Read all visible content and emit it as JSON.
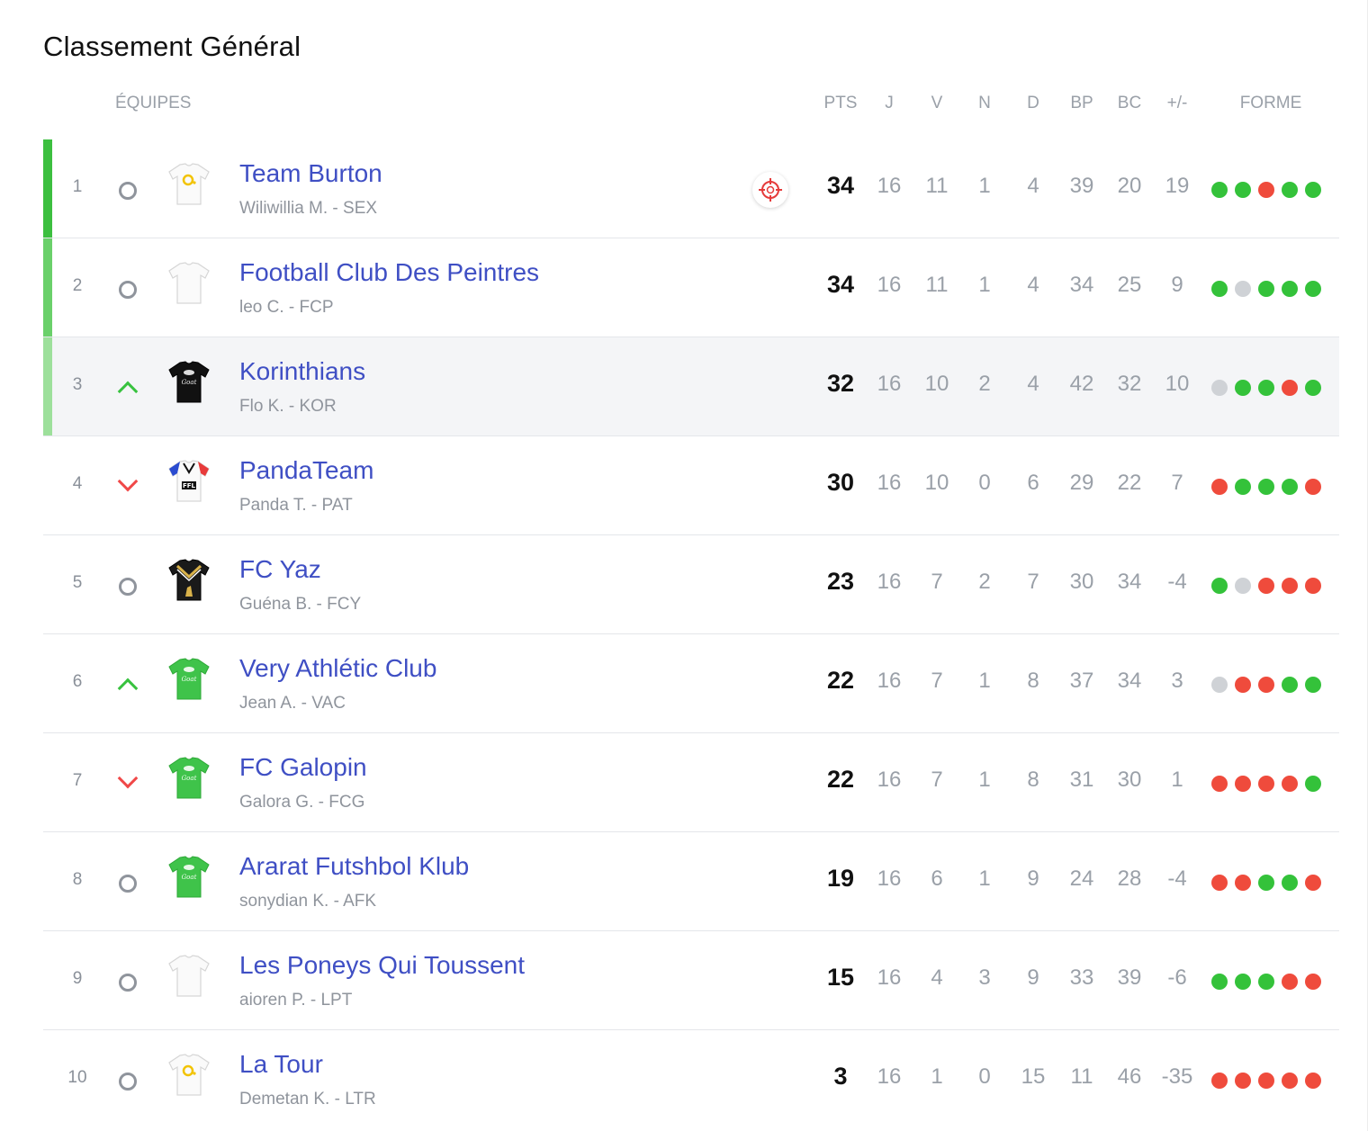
{
  "title": "Classement Général",
  "headers": {
    "teams": "ÉQUIPES",
    "pts": "PTS",
    "j": "J",
    "v": "V",
    "n": "N",
    "d": "D",
    "bp": "BP",
    "bc": "BC",
    "diff": "+/-",
    "forme": "FORME"
  },
  "colors": {
    "win": "#34c23a",
    "draw": "#cfd2d6",
    "loss": "#ef4b3c",
    "team_link": "#3f4fc4",
    "qualif_1": "#3cbf3f",
    "qualif_2": "#6ad06a",
    "qualif_3": "#9de09b"
  },
  "rows": [
    {
      "rank": "1",
      "trend": "same",
      "jersey": "white-yellow",
      "name": "Team Burton",
      "manager": "Wiliwillia M. - SEX",
      "target": true,
      "pts": "34",
      "j": "16",
      "v": "11",
      "n": "1",
      "d": "4",
      "bp": "39",
      "bc": "20",
      "diff": "19",
      "forme": [
        "W",
        "W",
        "L",
        "W",
        "W"
      ],
      "qualif": "qualif_1",
      "highlight": false
    },
    {
      "rank": "2",
      "trend": "same",
      "jersey": "white",
      "name": "Football Club Des Peintres",
      "manager": "leo C. - FCP",
      "target": false,
      "pts": "34",
      "j": "16",
      "v": "11",
      "n": "1",
      "d": "4",
      "bp": "34",
      "bc": "25",
      "diff": "9",
      "forme": [
        "W",
        "D",
        "W",
        "W",
        "W"
      ],
      "qualif": "qualif_2",
      "highlight": false
    },
    {
      "rank": "3",
      "trend": "up",
      "jersey": "black-goat",
      "name": "Korinthians",
      "manager": "Flo K. - KOR",
      "target": false,
      "pts": "32",
      "j": "16",
      "v": "10",
      "n": "2",
      "d": "4",
      "bp": "42",
      "bc": "32",
      "diff": "10",
      "forme": [
        "D",
        "W",
        "W",
        "L",
        "W"
      ],
      "qualif": "qualif_3",
      "highlight": true
    },
    {
      "rank": "4",
      "trend": "down",
      "jersey": "ffl",
      "name": "PandaTeam",
      "manager": "Panda T. - PAT",
      "target": false,
      "pts": "30",
      "j": "16",
      "v": "10",
      "n": "0",
      "d": "6",
      "bp": "29",
      "bc": "22",
      "diff": "7",
      "forme": [
        "L",
        "W",
        "W",
        "W",
        "L"
      ],
      "qualif": "",
      "highlight": false
    },
    {
      "rank": "5",
      "trend": "same",
      "jersey": "black-gold",
      "name": "FC Yaz",
      "manager": "Guéna B. - FCY",
      "target": false,
      "pts": "23",
      "j": "16",
      "v": "7",
      "n": "2",
      "d": "7",
      "bp": "30",
      "bc": "34",
      "diff": "-4",
      "forme": [
        "W",
        "D",
        "L",
        "L",
        "L"
      ],
      "qualif": "",
      "highlight": false
    },
    {
      "rank": "6",
      "trend": "up",
      "jersey": "green-goat",
      "name": "Very Athlétic Club",
      "manager": "Jean A. - VAC",
      "target": false,
      "pts": "22",
      "j": "16",
      "v": "7",
      "n": "1",
      "d": "8",
      "bp": "37",
      "bc": "34",
      "diff": "3",
      "forme": [
        "D",
        "L",
        "L",
        "W",
        "W"
      ],
      "qualif": "",
      "highlight": false
    },
    {
      "rank": "7",
      "trend": "down",
      "jersey": "green-goat",
      "name": "FC Galopin",
      "manager": "Galora G. - FCG",
      "target": false,
      "pts": "22",
      "j": "16",
      "v": "7",
      "n": "1",
      "d": "8",
      "bp": "31",
      "bc": "30",
      "diff": "1",
      "forme": [
        "L",
        "L",
        "L",
        "L",
        "W"
      ],
      "qualif": "",
      "highlight": false
    },
    {
      "rank": "8",
      "trend": "same",
      "jersey": "green-goat",
      "name": "Ararat Futshbol Klub",
      "manager": "sonydian K. - AFK",
      "target": false,
      "pts": "19",
      "j": "16",
      "v": "6",
      "n": "1",
      "d": "9",
      "bp": "24",
      "bc": "28",
      "diff": "-4",
      "forme": [
        "L",
        "L",
        "W",
        "W",
        "L"
      ],
      "qualif": "",
      "highlight": false
    },
    {
      "rank": "9",
      "trend": "same",
      "jersey": "white",
      "name": "Les Poneys Qui Toussent",
      "manager": "aioren P. - LPT",
      "target": false,
      "pts": "15",
      "j": "16",
      "v": "4",
      "n": "3",
      "d": "9",
      "bp": "33",
      "bc": "39",
      "diff": "-6",
      "forme": [
        "W",
        "W",
        "W",
        "L",
        "L"
      ],
      "qualif": "",
      "highlight": false
    },
    {
      "rank": "10",
      "trend": "same",
      "jersey": "white-yellow",
      "name": "La Tour",
      "manager": "Demetan K. - LTR",
      "target": false,
      "pts": "3",
      "j": "16",
      "v": "1",
      "n": "0",
      "d": "15",
      "bp": "11",
      "bc": "46",
      "diff": "-35",
      "forme": [
        "L",
        "L",
        "L",
        "L",
        "L"
      ],
      "qualif": "",
      "highlight": false
    }
  ]
}
